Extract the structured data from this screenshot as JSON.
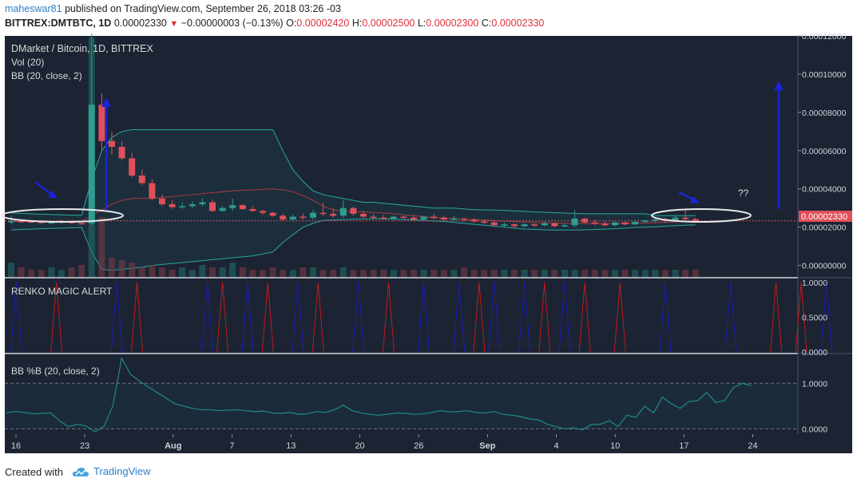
{
  "header": {
    "user": "maheswar81",
    "published_text": "published on TradingView.com, September 26, 2018 03:26 -03",
    "symbol": "BITTREX:DMTBTC, 1D",
    "last": "0.00002330",
    "change_arrow": "▼",
    "change": "−0.00000003 (−0.13%)",
    "o_label": "O:",
    "o_value": "0.00002420",
    "h_label": "H:",
    "h_value": "0.00002500",
    "l_label": "L:",
    "l_value": "0.00002300",
    "c_label": "C:",
    "c_value": "0.00002330"
  },
  "footer": {
    "created_with": "Created with",
    "brand": "TradingView",
    "brand_icon": "tradingview-cloud-icon"
  },
  "chart_data": [
    {
      "type": "candlestick",
      "pane": "main",
      "title": "DMarket / Bitcoin, 1D, BITTREX",
      "overlays": [
        "Vol (20)",
        "BB (20, close, 2)"
      ],
      "y_ticks": [
        "0.00012000",
        "0.00010000",
        "0.00008000",
        "0.00006000",
        "0.00004000",
        "0.00002000",
        "0.00000000"
      ],
      "ylim": [
        -6e-06,
        0.00012
      ],
      "last_price_label": "0.00002330",
      "annotations": [
        "??"
      ],
      "candles": [
        [
          2.25e-05,
          2.6e-05,
          2.15e-05,
          2.32e-05
        ],
        [
          2.32e-05,
          2.38e-05,
          2.24e-05,
          2.3e-05
        ],
        [
          2.3e-05,
          2.36e-05,
          2.22e-05,
          2.28e-05
        ],
        [
          2.28e-05,
          2.34e-05,
          2.18e-05,
          2.22e-05
        ],
        [
          2.22e-05,
          2.32e-05,
          2.16e-05,
          2.26e-05
        ],
        [
          2.26e-05,
          2.4e-05,
          2.18e-05,
          2.29e-05
        ],
        [
          2.29e-05,
          2.35e-05,
          2.19e-05,
          2.21e-05
        ],
        [
          2.21e-05,
          2.28e-05,
          2.15e-05,
          2.2e-05
        ],
        [
          2.2e-05,
          0.000133,
          2.1e-05,
          8.4e-05
        ],
        [
          8.4e-05,
          9e-05,
          6e-05,
          6.5e-05
        ],
        [
          6.5e-05,
          7e-05,
          5.8e-05,
          6.2e-05
        ],
        [
          6.2e-05,
          6.5e-05,
          5.5e-05,
          5.6e-05
        ],
        [
          5.6e-05,
          5.9e-05,
          4.6e-05,
          4.7e-05
        ],
        [
          4.7e-05,
          5e-05,
          4.2e-05,
          4.3e-05
        ],
        [
          4.3e-05,
          4.5e-05,
          3.4e-05,
          3.5e-05
        ],
        [
          3.5e-05,
          3.7e-05,
          3.1e-05,
          3.2e-05
        ],
        [
          3.2e-05,
          3.4e-05,
          2.95e-05,
          3.05e-05
        ],
        [
          3.05e-05,
          3.3e-05,
          2.95e-05,
          3.1e-05
        ],
        [
          3.1e-05,
          3.35e-05,
          3e-05,
          3.2e-05
        ],
        [
          3.2e-05,
          3.5e-05,
          3.1e-05,
          3.3e-05
        ],
        [
          3.3e-05,
          3.45e-05,
          2.8e-05,
          2.85e-05
        ],
        [
          2.85e-05,
          3.1e-05,
          2.8e-05,
          3e-05
        ],
        [
          3e-05,
          3.5e-05,
          2.85e-05,
          3.15e-05
        ],
        [
          3.15e-05,
          3.2e-05,
          2.9e-05,
          2.95e-05
        ],
        [
          2.95e-05,
          3.1e-05,
          2.8e-05,
          2.85e-05
        ],
        [
          2.85e-05,
          2.9e-05,
          2.65e-05,
          2.75e-05
        ],
        [
          2.75e-05,
          2.8e-05,
          2.55e-05,
          2.6e-05
        ],
        [
          2.6e-05,
          2.7e-05,
          2.35e-05,
          2.4e-05
        ],
        [
          2.4e-05,
          2.65e-05,
          2.3e-05,
          2.55e-05
        ],
        [
          2.55e-05,
          2.7e-05,
          2.4e-05,
          2.5e-05
        ],
        [
          2.5e-05,
          2.9e-05,
          2.4e-05,
          2.75e-05
        ],
        [
          2.75e-05,
          3.3e-05,
          2.6e-05,
          2.7e-05
        ],
        [
          2.7e-05,
          3e-05,
          2.5e-05,
          2.6e-05
        ],
        [
          2.6e-05,
          3.4e-05,
          2.5e-05,
          3e-05
        ],
        [
          3e-05,
          3.1e-05,
          2.6e-05,
          2.7e-05
        ],
        [
          2.7e-05,
          2.85e-05,
          2.5e-05,
          2.55e-05
        ],
        [
          2.55e-05,
          2.7e-05,
          2.4e-05,
          2.5e-05
        ],
        [
          2.5e-05,
          2.65e-05,
          2.4e-05,
          2.45e-05
        ],
        [
          2.45e-05,
          2.6e-05,
          2.35e-05,
          2.55e-05
        ],
        [
          2.55e-05,
          2.6e-05,
          2.4e-05,
          2.5e-05
        ],
        [
          2.5e-05,
          2.65e-05,
          2.35e-05,
          2.4e-05
        ],
        [
          2.4e-05,
          2.6e-05,
          2.35e-05,
          2.55e-05
        ],
        [
          2.55e-05,
          2.7e-05,
          2.4e-05,
          2.5e-05
        ],
        [
          2.5e-05,
          2.6e-05,
          2.35e-05,
          2.4e-05
        ],
        [
          2.4e-05,
          2.6e-05,
          2.35e-05,
          2.45e-05
        ],
        [
          2.45e-05,
          2.5e-05,
          2.3e-05,
          2.4e-05
        ],
        [
          2.4e-05,
          2.45e-05,
          2.25e-05,
          2.3e-05
        ],
        [
          2.3e-05,
          2.4e-05,
          2.15e-05,
          2.25e-05
        ],
        [
          2.25e-05,
          2.3e-05,
          2.05e-05,
          2.1e-05
        ],
        [
          2.1e-05,
          2.25e-05,
          2e-05,
          2.15e-05
        ],
        [
          2.15e-05,
          2.2e-05,
          1.95e-05,
          2.05e-05
        ],
        [
          2.05e-05,
          2.2e-05,
          2e-05,
          2.15e-05
        ],
        [
          2.15e-05,
          2.2e-05,
          2e-05,
          2.1e-05
        ],
        [
          2.1e-05,
          2.3e-05,
          2.05e-05,
          2.2e-05
        ],
        [
          2.2e-05,
          2.25e-05,
          2e-05,
          2.05e-05
        ],
        [
          2.05e-05,
          2.2e-05,
          2e-05,
          2.1e-05
        ],
        [
          2.1e-05,
          2.9e-05,
          2e-05,
          2.45e-05
        ],
        [
          2.45e-05,
          2.5e-05,
          2.2e-05,
          2.25e-05
        ],
        [
          2.25e-05,
          2.4e-05,
          2.1e-05,
          2.2e-05
        ],
        [
          2.2e-05,
          2.3e-05,
          2.05e-05,
          2.1e-05
        ],
        [
          2.1e-05,
          2.3e-05,
          2.05e-05,
          2.25e-05
        ],
        [
          2.25e-05,
          2.3e-05,
          2.1e-05,
          2.15e-05
        ],
        [
          2.15e-05,
          2.35e-05,
          2.1e-05,
          2.28e-05
        ],
        [
          2.28e-05,
          2.4e-05,
          2.2e-05,
          2.35e-05
        ],
        [
          2.35e-05,
          2.5e-05,
          2.25e-05,
          2.4e-05
        ],
        [
          2.4e-05,
          2.5e-05,
          2.25e-05,
          2.33e-05
        ],
        [
          2.33e-05,
          2.6e-05,
          2.28e-05,
          2.5e-05
        ],
        [
          2.5e-05,
          2.9e-05,
          2.35e-05,
          2.42e-05
        ],
        [
          2.42e-05,
          2.5e-05,
          2.3e-05,
          2.33e-05
        ]
      ],
      "bollinger": {
        "upper": [
          2.75e-05,
          2.72e-05,
          2.7e-05,
          2.68e-05,
          2.66e-05,
          2.65e-05,
          2.63e-05,
          2.62e-05,
          4.5e-05,
          6e-05,
          6.7e-05,
          7e-05,
          7.1e-05,
          7.1e-05,
          7.1e-05,
          7.1e-05,
          7.1e-05,
          7.1e-05,
          7.1e-05,
          7.1e-05,
          7.1e-05,
          7.1e-05,
          7.1e-05,
          7.1e-05,
          7.1e-05,
          7.1e-05,
          7.1e-05,
          6e-05,
          5e-05,
          4.4e-05,
          3.9e-05,
          3.7e-05,
          3.6e-05,
          3.5e-05,
          3.4e-05,
          3.3e-05,
          3.3e-05,
          3.25e-05,
          3.2e-05,
          3.15e-05,
          3.1e-05,
          3.05e-05,
          3e-05,
          3e-05,
          3e-05,
          2.95e-05,
          2.92e-05,
          2.9e-05,
          2.9e-05,
          2.88e-05,
          2.85e-05,
          2.83e-05,
          2.8e-05,
          2.78e-05,
          2.76e-05,
          2.74e-05,
          2.72e-05,
          2.7e-05,
          2.7e-05,
          2.7e-05,
          2.7e-05,
          2.7e-05,
          2.7e-05,
          2.7e-05,
          2.6e-05,
          2.6e-05,
          2.6e-05,
          2.6e-05,
          2.6e-05
        ],
        "basis": [
          2.3e-05,
          2.3e-05,
          2.3e-05,
          2.3e-05,
          2.3e-05,
          2.3e-05,
          2.3e-05,
          2.3e-05,
          2.6e-05,
          2.9e-05,
          3.2e-05,
          3.4e-05,
          3.5e-05,
          3.5e-05,
          3.5e-05,
          3.55e-05,
          3.6e-05,
          3.65e-05,
          3.7e-05,
          3.75e-05,
          3.8e-05,
          3.85e-05,
          3.9e-05,
          3.93e-05,
          3.95e-05,
          3.98e-05,
          4e-05,
          3.95e-05,
          3.85e-05,
          3.65e-05,
          3.4e-05,
          3.1e-05,
          2.9e-05,
          2.85e-05,
          2.82e-05,
          2.8e-05,
          2.77e-05,
          2.74e-05,
          2.7e-05,
          2.65e-05,
          2.6e-05,
          2.55e-05,
          2.5e-05,
          2.48e-05,
          2.45e-05,
          2.42e-05,
          2.4e-05,
          2.37e-05,
          2.35e-05,
          2.32e-05,
          2.3e-05,
          2.27e-05,
          2.25e-05,
          2.23e-05,
          2.22e-05,
          2.2e-05,
          2.2e-05,
          2.19e-05,
          2.18e-05,
          2.18e-05,
          2.19e-05,
          2.2e-05,
          2.2e-05,
          2.22e-05,
          2.23e-05,
          2.25e-05,
          2.28e-05,
          2.3e-05,
          2.32e-05
        ],
        "lower": [
          1.85e-05,
          1.88e-05,
          1.9e-05,
          1.92e-05,
          1.94e-05,
          1.95e-05,
          1.97e-05,
          1.98e-05,
          7e-06,
          -2e-06,
          -2.5e-06,
          -2e-06,
          -1.5e-06,
          -1e-06,
          0.0,
          5e-07,
          1e-06,
          1.5e-06,
          2e-06,
          2.5e-06,
          3e-06,
          3.5e-06,
          4e-06,
          4.5e-06,
          5e-06,
          6e-06,
          7e-06,
          1.2e-05,
          1.6e-05,
          2e-05,
          2.2e-05,
          2.35e-05,
          2.38e-05,
          2.4e-05,
          2.42e-05,
          2.43e-05,
          2.43e-05,
          2.43e-05,
          2.42e-05,
          2.4e-05,
          2.38e-05,
          2.35e-05,
          2.32e-05,
          2.3e-05,
          2.25e-05,
          2.2e-05,
          2.15e-05,
          2.1e-05,
          2.05e-05,
          2e-05,
          1.95e-05,
          1.9e-05,
          1.88e-05,
          1.86e-05,
          1.85e-05,
          1.85e-05,
          1.85e-05,
          1.86e-05,
          1.88e-05,
          1.9e-05,
          1.92e-05,
          1.95e-05,
          1.98e-05,
          2e-05,
          2.02e-05,
          2.05e-05,
          2.08e-05,
          2.1e-05,
          2.12e-05
        ]
      },
      "volume": [
        0.6,
        0.4,
        0.3,
        0.3,
        0.4,
        0.3,
        0.4,
        0.5,
        10,
        2.5,
        0.8,
        0.7,
        0.6,
        0.4,
        0.5,
        0.4,
        0.3,
        0.4,
        0.3,
        0.5,
        0.4,
        0.4,
        0.6,
        0.4,
        0.3,
        0.3,
        0.4,
        0.3,
        0.3,
        0.4,
        0.4,
        0.3,
        0.3,
        0.4,
        0.3,
        0.3,
        0.3,
        0.3,
        0.3,
        0.3,
        0.3,
        0.3,
        0.3,
        0.3,
        0.3,
        0.4,
        0.3,
        0.3,
        0.3,
        0.3,
        0.3,
        0.3,
        0.3,
        0.3,
        0.3,
        0.3,
        0.3,
        0.3,
        0.3,
        0.3,
        0.3,
        0.3,
        0.3,
        0.3,
        0.3,
        0.3,
        0.3,
        0.3,
        0.3
      ]
    },
    {
      "type": "line",
      "pane": "renko",
      "title": "RENKO MAGIC ALERT",
      "y_ticks": [
        "1.0000",
        "0.5000",
        "0.0000"
      ],
      "ylim": [
        0,
        1
      ],
      "series": [
        {
          "name": "",
          "color": "#c21a1a",
          "spikes": [
            4.5,
            12.5,
            21,
            25.5,
            30.5,
            37.5,
            46.5,
            53,
            57,
            60.5,
            76,
            78.5
          ]
        },
        {
          "name": "",
          "color": "#1a1ab8",
          "spikes": [
            0.5,
            10.5,
            19.5,
            23.5,
            28.5,
            34.5,
            41,
            44.5,
            48,
            51,
            55,
            65,
            71.5,
            81
          ]
        }
      ]
    },
    {
      "type": "line",
      "pane": "bbpb",
      "title": "BB %B (20, close, 2)",
      "y_ticks": [
        "1.0000",
        "0.0000"
      ],
      "ylim": [
        -0.08,
        1.6
      ],
      "series": [
        {
          "name": "",
          "color": "#1f8a8a",
          "values": [
            0.35,
            0.38,
            0.36,
            0.33,
            0.34,
            0.35,
            0.18,
            0.05,
            0.1,
            0.06,
            -0.06,
            0.05,
            0.5,
            1.55,
            1.2,
            1.05,
            0.92,
            0.8,
            0.68,
            0.55,
            0.5,
            0.45,
            0.42,
            0.42,
            0.4,
            0.41,
            0.42,
            0.4,
            0.38,
            0.39,
            0.35,
            0.34,
            0.36,
            0.32,
            0.33,
            0.38,
            0.36,
            0.42,
            0.52,
            0.4,
            0.35,
            0.32,
            0.3,
            0.32,
            0.35,
            0.34,
            0.32,
            0.33,
            0.36,
            0.4,
            0.37,
            0.38,
            0.4,
            0.36,
            0.35,
            0.38,
            0.32,
            0.3,
            0.27,
            0.22,
            0.2,
            0.1,
            0.05,
            0.0,
            0.02,
            -0.02,
            0.1,
            0.1,
            0.18,
            0.05,
            0.3,
            0.25,
            0.5,
            0.35,
            0.7,
            0.55,
            0.45,
            0.6,
            0.62,
            0.8,
            0.58,
            0.62,
            0.9,
            1.0,
            0.95
          ]
        }
      ]
    },
    {
      "type": "time-axis",
      "pane": "x-axis",
      "tick_labels": [
        "16",
        "23",
        "Aug",
        "7",
        "13",
        "20",
        "26",
        "Sep",
        "4",
        "10",
        "17",
        "24"
      ],
      "tick_days": [
        0,
        7,
        16,
        22,
        28,
        35,
        41,
        48,
        55,
        61,
        68,
        75
      ]
    }
  ],
  "colors": {
    "background": "#1c2433",
    "up": "#2e9c8f",
    "down": "#e0505a",
    "band": "#2aa8a0",
    "basis": "#a83a40",
    "arrow": "#1a24d8"
  }
}
